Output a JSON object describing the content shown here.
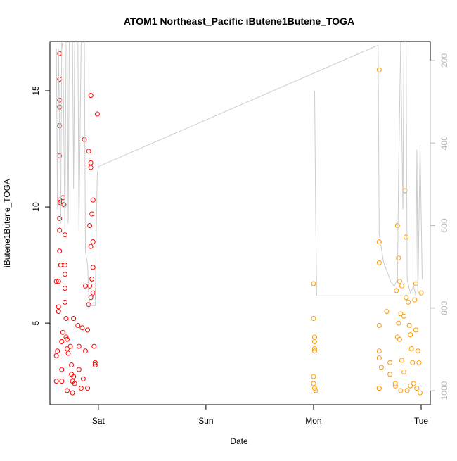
{
  "chart_data": {
    "type": "scatter",
    "title": "ATOM1 Northeast_Pacific iButene1Butene_TOGA",
    "x_label": "Date",
    "y_label": "iButene1Butene_TOGA",
    "xlim": [
      -0.45,
      3.085
    ],
    "ylim": [
      1.49,
      17.12
    ],
    "y2lim": [
      1034,
      154
    ],
    "xticks": [
      {
        "value": 0,
        "label": "Sat"
      },
      {
        "value": 1,
        "label": "Sun"
      },
      {
        "value": 2,
        "label": "Mon"
      },
      {
        "value": 3,
        "label": "Tue"
      }
    ],
    "yticks": [
      5,
      10,
      15
    ],
    "y2ticks": [
      200,
      400,
      600,
      800,
      1000
    ],
    "y2_color": "#bbbbbb",
    "series": [
      {
        "color": "#ff0000",
        "style": "points",
        "x": [
          -0.39,
          -0.39,
          -0.39,
          -0.38,
          -0.37,
          -0.37,
          -0.37,
          -0.36,
          -0.36,
          -0.36,
          -0.36,
          -0.36,
          -0.36,
          -0.36,
          -0.36,
          -0.36,
          -0.36,
          -0.36,
          -0.35,
          -0.35,
          -0.34,
          -0.34,
          -0.34,
          -0.33,
          -0.33,
          -0.32,
          -0.31,
          -0.31,
          -0.31,
          -0.31,
          -0.31,
          -0.3,
          -0.3,
          -0.29,
          -0.29,
          -0.29,
          -0.28,
          -0.26,
          -0.25,
          -0.25,
          -0.24,
          -0.24,
          -0.23,
          -0.23,
          -0.22,
          -0.19,
          -0.18,
          -0.18,
          -0.16,
          -0.15,
          -0.14,
          -0.13,
          -0.12,
          -0.12,
          -0.1,
          -0.1,
          -0.09,
          -0.09,
          -0.08,
          -0.07,
          -0.07,
          -0.07,
          -0.06,
          -0.05,
          -0.05,
          -0.05,
          -0.04,
          -0.03,
          -0.03,
          -0.01,
          -0.05,
          -0.07,
          -0.06,
          -0.07,
          -0.08
        ],
        "values": [
          6.8,
          2.5,
          3.6,
          3.8,
          6.8,
          5.7,
          5.5,
          16.6,
          15.5,
          14.6,
          14.3,
          13.5,
          12.2,
          10.3,
          10.2,
          9.5,
          9.0,
          8.1,
          7.5,
          7.5,
          2.5,
          3.0,
          4.2,
          4.6,
          10.4,
          10.1,
          8.8,
          7.1,
          6.5,
          7.5,
          5.9,
          5.2,
          4.4,
          4.3,
          3.9,
          2.1,
          3.7,
          4.0,
          2.8,
          3.2,
          2.0,
          2.5,
          5.2,
          2.7,
          2.4,
          4.9,
          3.0,
          4.0,
          2.2,
          4.8,
          2.6,
          12.9,
          6.6,
          3.8,
          4.7,
          2.2,
          5.8,
          12.4,
          6.6,
          11.9,
          11.7,
          14.8,
          9.7,
          8.5,
          10.3,
          6.3,
          4.0,
          3.3,
          3.2,
          14.0,
          7.4,
          6.1,
          6.9,
          8.3,
          9.2
        ]
      },
      {
        "color": "#ff9900",
        "style": "points",
        "x": [
          2.0,
          2.0,
          2.01,
          2.01,
          2.01,
          2.01,
          2.0,
          2.0,
          2.01,
          2.02,
          2.61,
          2.61,
          2.61,
          2.61,
          2.61,
          2.61,
          2.61,
          2.61,
          2.63,
          2.68,
          2.71,
          2.71,
          2.76,
          2.76,
          2.77,
          2.78,
          2.79,
          2.8,
          2.81,
          2.82,
          2.85,
          2.86,
          2.86,
          2.88,
          2.89,
          2.9,
          2.92,
          2.93,
          2.94,
          2.95,
          2.95,
          2.96,
          2.97,
          2.98,
          2.99,
          3.0,
          2.78,
          2.8,
          2.82,
          2.84,
          2.87,
          2.9,
          2.91,
          2.81,
          2.84,
          2.79
        ],
        "values": [
          6.7,
          5.2,
          4.4,
          4.2,
          3.9,
          3.8,
          2.7,
          2.4,
          2.2,
          2.1,
          15.9,
          8.5,
          7.6,
          4.9,
          3.8,
          3.5,
          2.2,
          2.2,
          3.1,
          5.5,
          3.3,
          2.8,
          2.4,
          2.3,
          6.4,
          9.2,
          7.8,
          6.8,
          5.4,
          6.6,
          10.7,
          8.7,
          6.1,
          5.9,
          4.9,
          4.5,
          3.3,
          2.4,
          6.0,
          4.7,
          6.7,
          2.2,
          3.8,
          3.3,
          2.0,
          6.3,
          4.4,
          4.3,
          3.4,
          2.9,
          2.1,
          2.3,
          3.9,
          2.1,
          5.3,
          5.0
        ]
      },
      {
        "color": "#cccccc",
        "style": "line",
        "axis": "y2",
        "x": [
          -0.39,
          -0.38,
          -0.37,
          -0.35,
          -0.34,
          -0.33,
          -0.31,
          -0.3,
          -0.29,
          -0.28,
          -0.27,
          -0.24,
          -0.23,
          -0.22,
          -0.19,
          -0.18,
          -0.16,
          -0.14,
          -0.13,
          -0.12,
          -0.1,
          -0.09,
          -0.08,
          -0.05,
          -0.03,
          -0.01,
          0.0,
          2.6,
          2.61,
          2.65,
          2.69,
          2.72,
          2.75,
          2.78,
          2.79,
          2.81,
          2.83,
          2.84,
          2.86,
          2.87,
          2.9,
          2.93,
          2.95,
          2.96,
          2.97,
          2.99,
          3.01,
          null,
          2.01,
          2.02,
          2.03,
          2.84
        ],
        "values": [
          171,
          561,
          171,
          595,
          155,
          171,
          612,
          155,
          155,
          595,
          155,
          155,
          511,
          155,
          155,
          612,
          155,
          155,
          155,
          662,
          696,
          764,
          794,
          794,
          794,
          477,
          457,
          163,
          620,
          688,
          716,
          737,
          747,
          730,
          477,
          155,
          561,
          155,
          155,
          730,
          764,
          747,
          770,
          416,
          770,
          406,
          730,
          null,
          274,
          578,
          770,
          770
        ]
      }
    ]
  }
}
